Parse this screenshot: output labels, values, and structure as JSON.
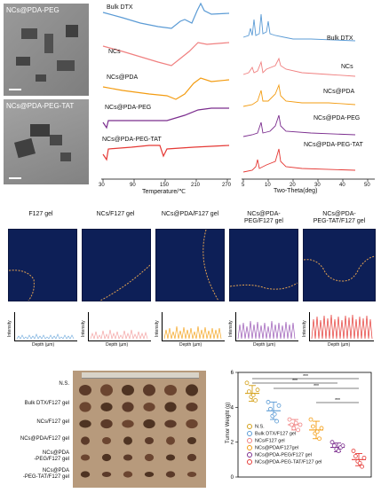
{
  "tem": {
    "top_label": "NCs@PDA-PEG",
    "bottom_label": "NCs@PDA-PEG-TAT"
  },
  "dsc": {
    "labels": [
      "Bulk DTX",
      "NCs",
      "NCs@PDA",
      "NCs@PDA-PEG",
      "NCs@PDA-PEG-TAT"
    ],
    "colors": [
      "#5b9bd5",
      "#f08080",
      "#f39c12",
      "#7b2d8e",
      "#e53935"
    ],
    "xlabel": "Temperature/℃",
    "xticks": [
      "30",
      "90",
      "150",
      "210",
      "270"
    ]
  },
  "xrd": {
    "labels": [
      "Bulk DTX",
      "NCs",
      "NCs@PDA",
      "NCs@PDA-PEG",
      "NCs@PDA-PEG-TAT"
    ],
    "colors": [
      "#5b9bd5",
      "#f08080",
      "#f39c12",
      "#7b2d8e",
      "#e53935"
    ],
    "xlabel": "Two-Theta(deg)",
    "xticks": [
      "5",
      "10",
      "20",
      "30",
      "40",
      "50"
    ]
  },
  "penetration": {
    "titles": [
      "F127 gel",
      "NCs/F127 gel",
      "NCs@PDA/F127 gel",
      "NCs@PDA-PEG/F127 gel",
      "NCs@PDA-PEG-TAT/F127 gel"
    ],
    "title_lines": [
      [
        "F127 gel",
        ""
      ],
      [
        "NCs/F127 gel",
        ""
      ],
      [
        "NCs@PDA/F127 gel",
        ""
      ],
      [
        "NCs@PDA-",
        "PEG/F127 gel"
      ],
      [
        "NCs@PDA-",
        "PEG-TAT/F127 gel"
      ]
    ],
    "profile_colors": [
      "#7fb3e0",
      "#f4a6a6",
      "#f5a623",
      "#9b59b6",
      "#e53935"
    ],
    "profile_ylabel": "Intensity",
    "profile_xlabel": "Depth (µm)"
  },
  "tumor_photo": {
    "rows": [
      "N.S.",
      "Bulk DTX/F127 gel",
      "NCs/F127 gel",
      "NCs@PDA/F127 gel",
      "NCs@PDA -PEG/F127 gel",
      "NCs@PDA -PEG-TAT/F127 gel"
    ],
    "row_lines": [
      [
        "N.S.",
        ""
      ],
      [
        "Bulk DTX/F127 gel",
        ""
      ],
      [
        "NCs/F127 gel",
        ""
      ],
      [
        "NCs@PDA/F127 gel",
        ""
      ],
      [
        "NCs@PDA",
        "-PEG/F127 gel"
      ],
      [
        "NCs@PDA",
        "-PEG-TAT/F127 gel"
      ]
    ]
  },
  "chart_data": {
    "type": "scatter",
    "ylabel": "Tumor Weight (g)",
    "ylim": [
      0,
      6
    ],
    "yticks": [
      "0",
      "2",
      "4",
      "6"
    ],
    "significance": [
      "***",
      "***",
      "***",
      "***"
    ],
    "series": [
      {
        "name": "N.S.",
        "color": "#d4a017",
        "mean": 4.8,
        "sd": 0.45,
        "values": [
          5.4,
          4.9,
          4.6,
          4.7,
          4.4,
          5.0
        ]
      },
      {
        "name": "Bulk DTX/F127 gel",
        "color": "#5b9bd5",
        "mean": 3.8,
        "sd": 0.5,
        "values": [
          4.3,
          3.9,
          3.5,
          3.6,
          3.2,
          4.1
        ]
      },
      {
        "name": "NCs/F127 gel",
        "color": "#f08080",
        "mean": 3.0,
        "sd": 0.3,
        "values": [
          3.3,
          3.0,
          2.8,
          3.1,
          2.7,
          3.0
        ]
      },
      {
        "name": "NCs@PDA/F127gel",
        "color": "#f39c12",
        "mean": 2.7,
        "sd": 0.5,
        "values": [
          3.3,
          2.9,
          2.5,
          2.6,
          2.2,
          2.8
        ]
      },
      {
        "name": "NCs@PDA-PEG/F127 gel",
        "color": "#7b2d8e",
        "mean": 1.7,
        "sd": 0.25,
        "values": [
          2.0,
          1.8,
          1.6,
          1.5,
          1.7,
          1.8
        ]
      },
      {
        "name": "NCs@PDA-PEG-TAT/F127 gel",
        "color": "#e53935",
        "mean": 1.0,
        "sd": 0.35,
        "values": [
          1.5,
          1.2,
          0.9,
          0.8,
          0.6,
          1.1
        ]
      }
    ]
  }
}
